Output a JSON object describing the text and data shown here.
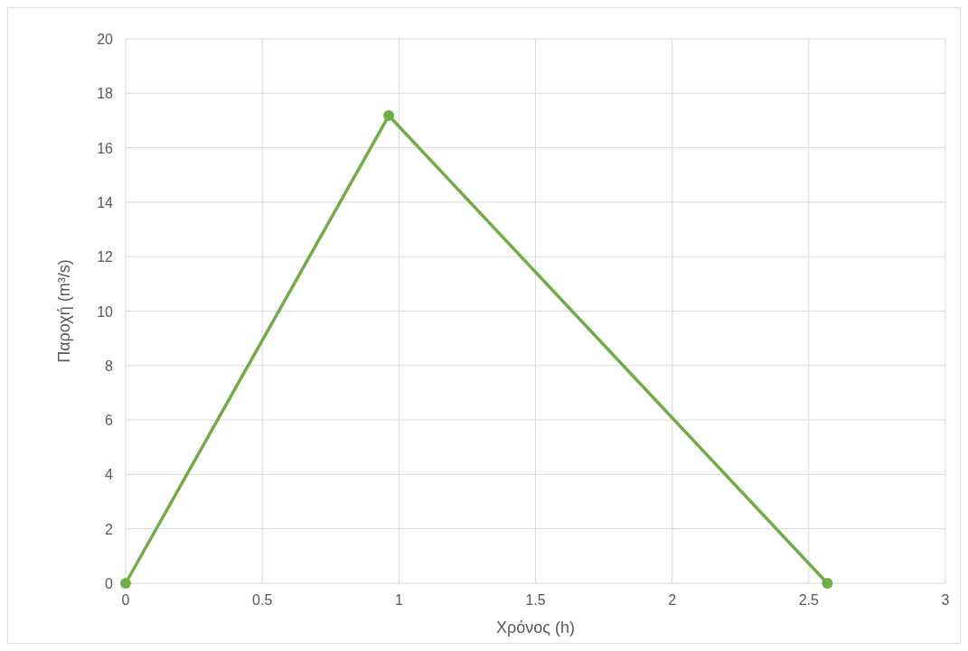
{
  "chart_data": {
    "type": "line",
    "xlabel": "Χρόνος (h)",
    "ylabel": "Παροχή (m³/s)",
    "series": [
      {
        "color": "#70ad47",
        "x": [
          0,
          0.963,
          2.568
        ],
        "values": [
          0,
          17.18,
          0
        ]
      }
    ],
    "xlim": [
      0,
      3
    ],
    "xticks": [
      0,
      0.5,
      1,
      1.5,
      2,
      2.5,
      3
    ],
    "ylim": [
      0,
      20
    ],
    "yticks": [
      0,
      2,
      4,
      6,
      8,
      10,
      12,
      14,
      16,
      18,
      20
    ],
    "grid": true,
    "marker": "circle",
    "line_style": "solid"
  }
}
